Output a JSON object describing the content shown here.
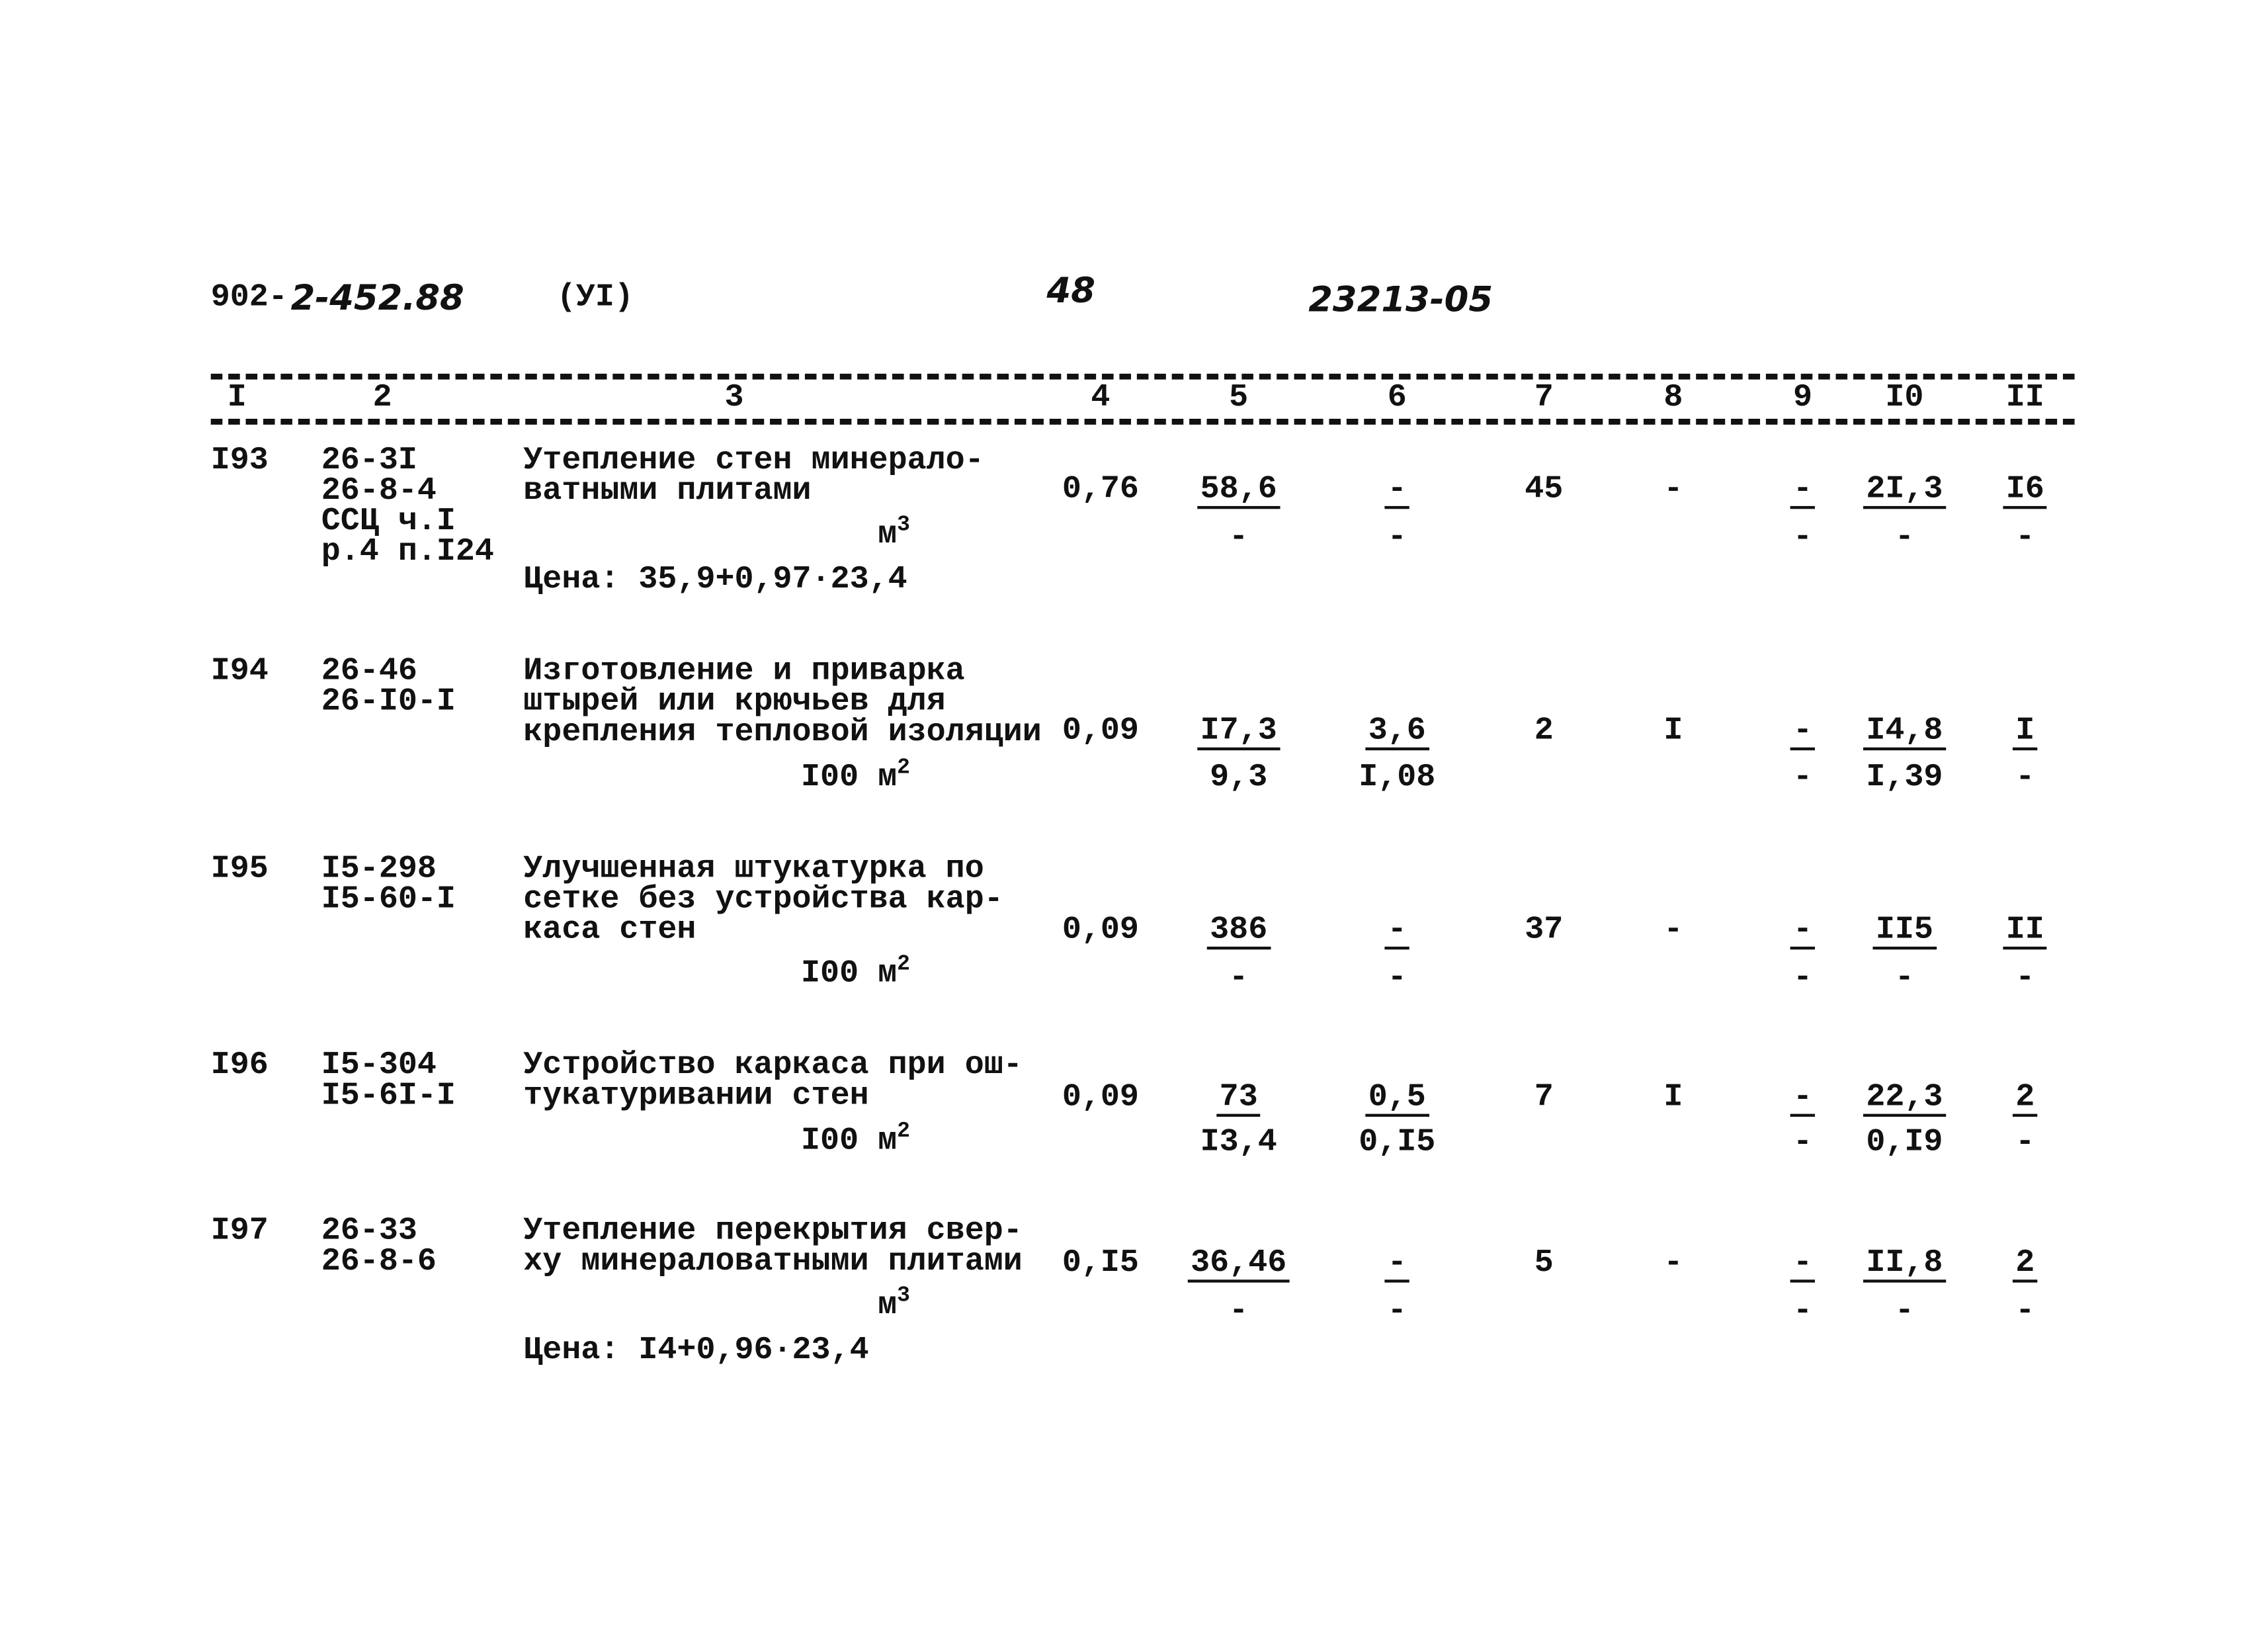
{
  "header": {
    "doc_code_prefix": "902-",
    "doc_code_hand": "2-452.88",
    "section": "(УI)",
    "page_number": "48",
    "archive_number": "23213-05"
  },
  "columns": [
    "I",
    "2",
    "3",
    "4",
    "5",
    "6",
    "7",
    "8",
    "9",
    "I0",
    "II"
  ],
  "rows": [
    {
      "id": "I93",
      "codes": [
        "26-3I",
        "26-8-4",
        "ССЦ ч.I",
        "р.4 п.I24"
      ],
      "desc": [
        "Утепление стен минерало-",
        "ватными плитами"
      ],
      "unit": "м",
      "unit_exp": "3",
      "price": "Цена: 35,9+0,97·23,4",
      "c4": "0,76",
      "c5": [
        "58,6",
        "-"
      ],
      "c6": [
        "-",
        "-"
      ],
      "c7": "45",
      "c8": "-",
      "c9": [
        "-",
        "-"
      ],
      "c10": [
        "2I,3",
        "-"
      ],
      "c11": [
        "I6",
        "-"
      ]
    },
    {
      "id": "I94",
      "codes": [
        "26-46",
        "26-I0-I"
      ],
      "desc": [
        "Изготовление и приварка",
        "штырей или крючьев для",
        "крепления тепловой изоляции"
      ],
      "unit": "I00 м",
      "unit_exp": "2",
      "price": "",
      "c4": "0,09",
      "c5": [
        "I7,3",
        "9,3"
      ],
      "c6": [
        "3,6",
        "I,08"
      ],
      "c7": "2",
      "c8": "I",
      "c9": [
        "-",
        "-"
      ],
      "c10": [
        "I4,8",
        "I,39"
      ],
      "c11": [
        "I",
        "-"
      ]
    },
    {
      "id": "I95",
      "codes": [
        "I5-298",
        "I5-60-I"
      ],
      "desc": [
        "Улучшенная штукатурка по",
        "сетке без устройства кар-",
        "каса стен"
      ],
      "unit": "I00 м",
      "unit_exp": "2",
      "price": "",
      "c4": "0,09",
      "c5": [
        "386",
        "-"
      ],
      "c6": [
        "-",
        "-"
      ],
      "c7": "37",
      "c8": "-",
      "c9": [
        "-",
        "-"
      ],
      "c10": [
        "II5",
        "-"
      ],
      "c11": [
        "II",
        "-"
      ]
    },
    {
      "id": "I96",
      "codes": [
        "I5-304",
        "I5-6I-I"
      ],
      "desc": [
        "Устройство каркаса при ош-",
        "тукатуривании стен"
      ],
      "unit": "I00 м",
      "unit_exp": "2",
      "price": "",
      "c4": "0,09",
      "c5": [
        "73",
        "I3,4"
      ],
      "c6": [
        "0,5",
        "0,I5"
      ],
      "c7": "7",
      "c8": "I",
      "c9": [
        "-",
        "-"
      ],
      "c10": [
        "22,3",
        "0,I9"
      ],
      "c11": [
        "2",
        "-"
      ]
    },
    {
      "id": "I97",
      "codes": [
        "26-33",
        "26-8-6"
      ],
      "desc": [
        "Утепление перекрытия свер-",
        "ху минераловатными плитами"
      ],
      "unit": "м",
      "unit_exp": "3",
      "price": "Цена: I4+0,96·23,4",
      "c4": "0,I5",
      "c5": [
        "36,46",
        "-"
      ],
      "c6": [
        "-",
        "-"
      ],
      "c7": "5",
      "c8": "-",
      "c9": [
        "-",
        "-"
      ],
      "c10": [
        "II,8",
        "-"
      ],
      "c11": [
        "2",
        "-"
      ]
    }
  ]
}
